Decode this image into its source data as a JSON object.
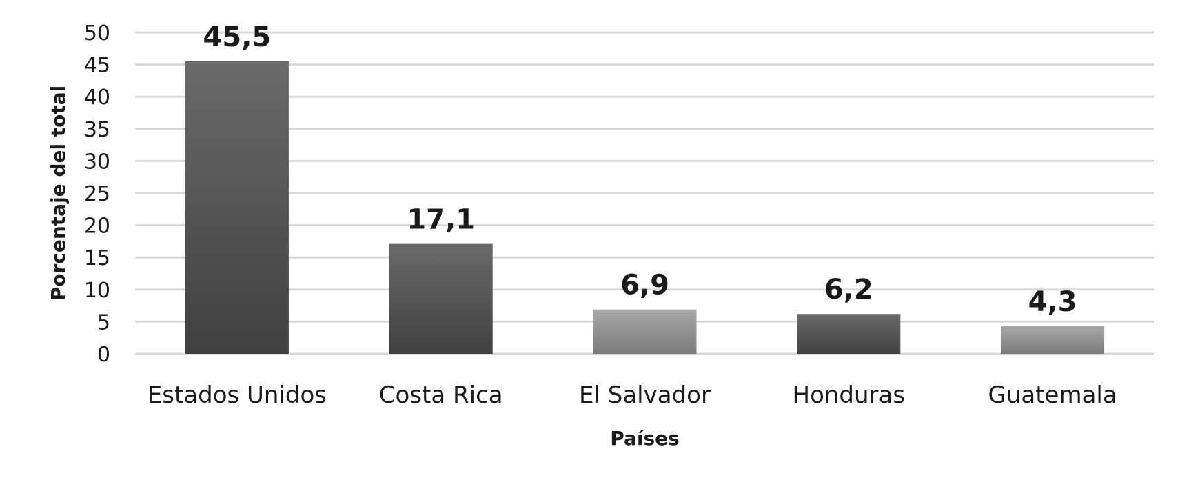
{
  "chart_data": {
    "type": "bar",
    "title": "",
    "xlabel": "Países",
    "ylabel": "Porcentaje del total",
    "categories": [
      "Estados Unidos",
      "Costa Rica",
      "El Salvador",
      "Honduras",
      "Guatemala"
    ],
    "values": [
      45.5,
      17.1,
      6.9,
      6.2,
      4.3
    ],
    "value_labels": [
      "45,5",
      "17,1",
      "6,9",
      "6,2",
      "4,3"
    ],
    "ylim": [
      0,
      50
    ],
    "yticks": [
      "0",
      "5",
      "10",
      "15",
      "20",
      "25",
      "30",
      "35",
      "40",
      "45",
      "50"
    ],
    "grid": true,
    "legend": "none",
    "bar_colors": [
      "#505050",
      "#505050",
      "#a0a0a0",
      "#505050",
      "#8c8c8c"
    ]
  }
}
